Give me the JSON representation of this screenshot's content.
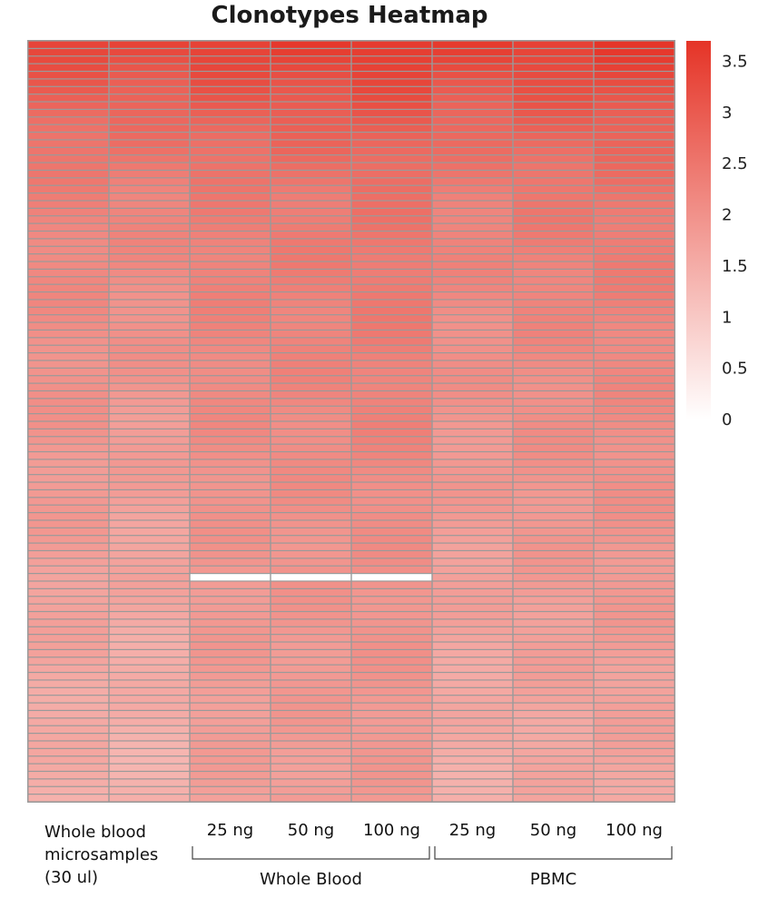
{
  "chart_data": {
    "type": "heatmap",
    "title": "Clonotypes Heatmap",
    "columns": [
      "Whole blood microsamples (30 ul)",
      "Whole blood microsamples (30 ul)",
      "25 ng",
      "50 ng",
      "100 ng",
      "25 ng",
      "50 ng",
      "100 ng"
    ],
    "column_label_lines": [
      [
        "Whole blood",
        "microsamples",
        "(30 ul)"
      ],
      [
        "25 ng"
      ],
      [
        "50 ng"
      ],
      [
        "100 ng"
      ],
      [
        "25 ng"
      ],
      [
        "50 ng"
      ],
      [
        "100 ng"
      ]
    ],
    "groups": [
      {
        "name": "Whole Blood",
        "columns": [
          2,
          4
        ]
      },
      {
        "name": "PBMC",
        "columns": [
          5,
          7
        ]
      }
    ],
    "n_rows": 100,
    "profile_row_index": [
      0,
      5,
      10,
      15,
      20,
      30,
      40,
      50,
      60,
      70,
      80,
      90,
      99
    ],
    "column_profiles": [
      [
        3.4,
        3.0,
        2.7,
        2.5,
        2.3,
        2.15,
        2.05,
        1.95,
        1.85,
        1.75,
        1.65,
        1.55,
        1.5
      ],
      [
        3.4,
        3.0,
        2.7,
        2.5,
        2.3,
        2.1,
        2.0,
        1.85,
        1.75,
        1.65,
        1.55,
        1.45,
        1.4
      ],
      [
        3.5,
        3.15,
        2.85,
        2.6,
        2.4,
        2.3,
        2.2,
        2.1,
        2.0,
        1.9,
        1.85,
        1.8,
        1.75
      ],
      [
        3.55,
        3.2,
        2.9,
        2.65,
        2.45,
        2.35,
        2.25,
        2.15,
        2.05,
        1.95,
        1.9,
        1.85,
        1.8
      ],
      [
        3.65,
        3.3,
        3.0,
        2.75,
        2.55,
        2.45,
        2.35,
        2.25,
        2.1,
        2.0,
        1.95,
        1.9,
        1.85
      ],
      [
        3.5,
        3.1,
        2.8,
        2.55,
        2.35,
        2.2,
        2.05,
        1.95,
        1.85,
        1.75,
        1.65,
        1.55,
        1.5
      ],
      [
        3.55,
        3.2,
        2.9,
        2.65,
        2.45,
        2.3,
        2.15,
        2.05,
        1.95,
        1.85,
        1.75,
        1.65,
        1.6
      ],
      [
        3.6,
        3.25,
        2.95,
        2.7,
        2.5,
        2.35,
        2.2,
        2.1,
        2.0,
        1.9,
        1.8,
        1.7,
        1.65
      ]
    ],
    "missing_cells": [
      [
        70,
        2
      ],
      [
        70,
        3
      ],
      [
        70,
        4
      ]
    ],
    "color_min": "#ffffff",
    "color_max": "#e53427",
    "colorbar": {
      "min": 0,
      "max": 3.7,
      "ticks": [
        "0",
        "0.5",
        "1",
        "1.5",
        "2",
        "2.5",
        "3",
        "3.5"
      ]
    }
  }
}
